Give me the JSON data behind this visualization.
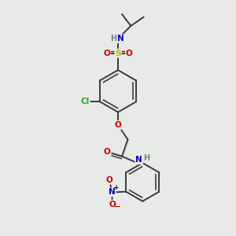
{
  "bg_color": "#e8eae8",
  "bond_color": "#3a3a3a",
  "bond_width": 1.4,
  "atom_colors": {
    "C": "#3a3a3a",
    "H": "#6a8a6a",
    "N": "#0000bb",
    "O": "#cc0000",
    "S": "#bbbb00",
    "Cl": "#22aa22"
  },
  "font_size": 7.5
}
